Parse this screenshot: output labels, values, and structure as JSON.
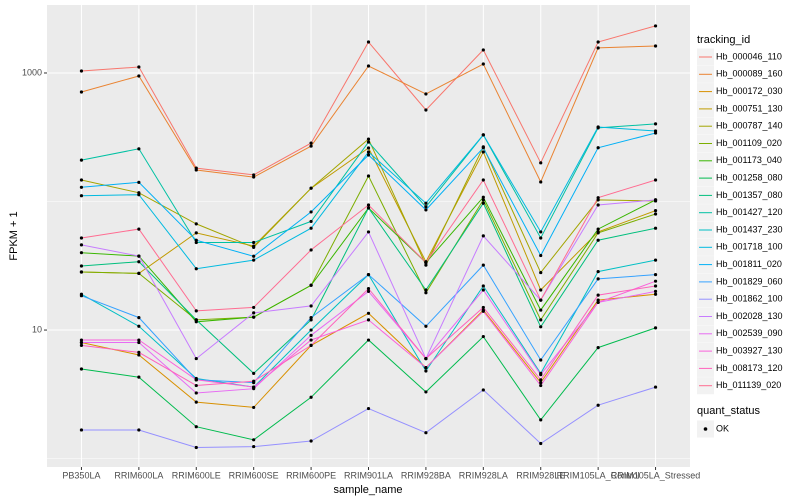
{
  "chart_data": {
    "type": "line",
    "x_label": "sample_name",
    "y_label": "FPKM + 1",
    "log_y": true,
    "grid": true,
    "ylim": [
      0.86,
      3380
    ],
    "yticks": [
      10,
      1000
    ],
    "minor_yticks": [
      1,
      100
    ],
    "categories": [
      "PB350LA",
      "RRIM600LA",
      "RRIM600LE",
      "RRIM600SE",
      "RRIM600PE",
      "RRIM901LA",
      "RRIM928BA",
      "RRIM928LA",
      "RRIM928LE",
      "RRIM105LA_Control",
      "RRIM105LA_Stressed"
    ],
    "legend_title": "tracking_id",
    "point_legend": {
      "title": "quant_status",
      "label": "OK",
      "color": "#000000"
    },
    "series": [
      {
        "name": "Hb_000046_110",
        "color": "#F8766D",
        "values": [
          1036,
          1113,
          182,
          161,
          285,
          1742,
          515,
          1511,
          200,
          1742,
          2323
        ]
      },
      {
        "name": "Hb_000089_160",
        "color": "#EA8331",
        "values": [
          711,
          948,
          176,
          155,
          270,
          1134,
          687,
          1175,
          142,
          1566,
          1622
        ]
      },
      {
        "name": "Hb_000172_030",
        "color": "#D89000",
        "values": [
          8.0,
          6.4,
          2.75,
          2.5,
          7.6,
          13.5,
          5.1,
          14.3,
          3.9,
          17.1,
          19
        ]
      },
      {
        "name": "Hb_000751_130",
        "color": "#C09B00",
        "values": [
          28.3,
          27.6,
          57,
          45,
          127,
          261,
          34,
          243,
          20.5,
          58,
          85
        ]
      },
      {
        "name": "Hb_000787_140",
        "color": "#A3A500",
        "values": [
          147,
          117,
          67,
          44,
          127,
          306,
          32,
          266,
          28,
          103,
          101
        ]
      },
      {
        "name": "Hb_001109_020",
        "color": "#7CAE00",
        "values": [
          28.3,
          27.6,
          12,
          12.6,
          22.3,
          158,
          19.5,
          103,
          12,
          57,
          80
        ]
      },
      {
        "name": "Hb_001173_040",
        "color": "#39B600",
        "values": [
          40,
          37.6,
          11.6,
          12.6,
          22.3,
          89,
          33.5,
          108,
          14.3,
          61,
          103
        ]
      },
      {
        "name": "Hb_001258_080",
        "color": "#00BB4E",
        "values": [
          4.98,
          4.3,
          1.77,
          1.4,
          3.0,
          8.36,
          3.3,
          8.9,
          2.0,
          7.3,
          10.4
        ]
      },
      {
        "name": "Hb_001357_080",
        "color": "#00BF7D",
        "values": [
          31.5,
          34,
          12,
          4.6,
          12,
          89,
          20.5,
          97,
          10.6,
          50,
          62
        ]
      },
      {
        "name": "Hb_001427_120",
        "color": "#00C1A3",
        "values": [
          210,
          257,
          48,
          48,
          70,
          290,
          91,
          330,
          52,
          374,
          402
        ]
      },
      {
        "name": "Hb_001437_230",
        "color": "#00BFC4",
        "values": [
          19,
          10.7,
          4.2,
          3.6,
          10,
          27,
          4.8,
          22,
          4.6,
          28.5,
          35
        ]
      },
      {
        "name": "Hb_001718_100",
        "color": "#00BAE0",
        "values": [
          111,
          113,
          30,
          35,
          62,
          243,
          97,
          330,
          58,
          380,
          354
        ]
      },
      {
        "name": "Hb_001811_020",
        "color": "#00B0F6",
        "values": [
          129,
          141,
          50,
          37.5,
          83,
          230,
          86,
          262,
          38,
          262,
          341
        ]
      },
      {
        "name": "Hb_001829_060",
        "color": "#35A2FF",
        "values": [
          18.5,
          12.5,
          4.1,
          3.9,
          12.5,
          27,
          10.7,
          32,
          5.85,
          25,
          27
        ]
      },
      {
        "name": "Hb_001862_100",
        "color": "#9590FF",
        "values": [
          1.67,
          1.67,
          1.22,
          1.24,
          1.37,
          2.45,
          1.59,
          3.42,
          1.31,
          2.6,
          3.6
        ]
      },
      {
        "name": "Hb_002028_130",
        "color": "#C77CFF",
        "values": [
          46,
          37.6,
          6.0,
          13.6,
          15.4,
          58,
          6.0,
          54,
          17.1,
          94,
          103
        ]
      },
      {
        "name": "Hb_002539_090",
        "color": "#E76BF3",
        "values": [
          8.0,
          8.0,
          3.24,
          3.5,
          9.1,
          20,
          6.0,
          20.5,
          4.5,
          16.4,
          20
        ]
      },
      {
        "name": "Hb_003927_130",
        "color": "#FA62DB",
        "values": [
          8.36,
          8.36,
          4.1,
          3.6,
          8.36,
          12,
          5.1,
          14,
          3.7,
          16.4,
          24
        ]
      },
      {
        "name": "Hb_008173_120",
        "color": "#FF62BC",
        "values": [
          7.6,
          6.7,
          3.7,
          4.0,
          7.6,
          21,
          6,
          15,
          4.1,
          18.7,
          22
        ]
      },
      {
        "name": "Hb_011139_020",
        "color": "#FF6C91",
        "values": [
          52,
          61,
          14.1,
          15,
          42,
          94,
          33.5,
          147,
          17.1,
          107,
          147
        ]
      }
    ]
  }
}
